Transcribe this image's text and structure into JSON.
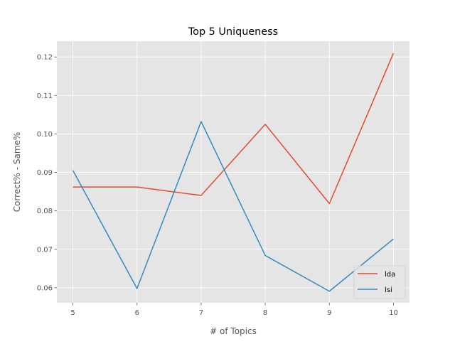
{
  "chart_data": {
    "type": "line",
    "title": "Top 5 Uniqueness",
    "xlabel": "# of Topics",
    "ylabel": "Correct% - Same%",
    "x": [
      5,
      6,
      7,
      8,
      9,
      10
    ],
    "xlim": [
      4.75,
      10.25
    ],
    "ylim": [
      0.0561,
      0.1241
    ],
    "xticks": [
      "5",
      "6",
      "7",
      "8",
      "9",
      "10"
    ],
    "yticks": [
      "0.06",
      "0.07",
      "0.08",
      "0.09",
      "0.10",
      "0.11",
      "0.12"
    ],
    "grid": true,
    "legend_position": "lower right",
    "series": [
      {
        "name": "lda",
        "color": "#E24A33",
        "values": [
          0.0862,
          0.0862,
          0.084,
          0.1025,
          0.0819,
          0.121
        ]
      },
      {
        "name": "lsi",
        "color": "#348ABD",
        "values": [
          0.0905,
          0.0598,
          0.1032,
          0.0684,
          0.0591,
          0.0727
        ]
      }
    ],
    "background_color": "#E5E5E5",
    "grid_color": "#FFFFFF"
  }
}
